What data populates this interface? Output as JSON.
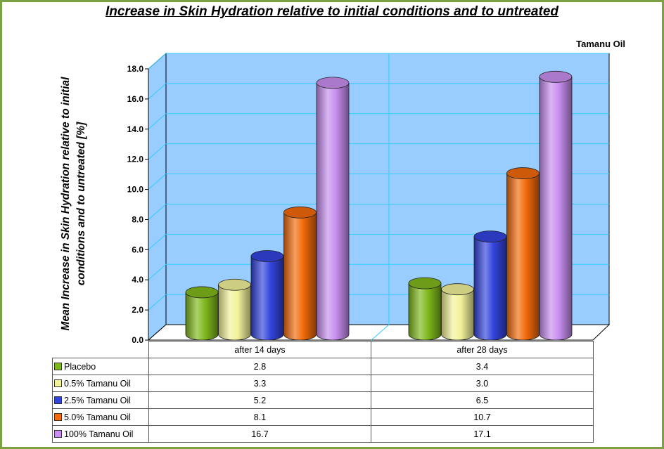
{
  "title": "Increase in Skin Hydration relative to initial conditions and to untreated",
  "subtitle": "Tamanu Oil",
  "chart_data": {
    "type": "bar",
    "title": "Increase in Skin Hydration relative to initial conditions and to untreated",
    "subtitle": "Tamanu Oil",
    "ylabel": "Mean Increase in Skin Hydration relative to initial conditions and to untreated [%]",
    "xlabel": "",
    "ylim": [
      0,
      18
    ],
    "yticks": [
      "0.0",
      "2.0",
      "4.0",
      "6.0",
      "8.0",
      "10.0",
      "12.0",
      "14.0",
      "16.0",
      "18.0"
    ],
    "categories": [
      "after 14 days",
      "after 28 days"
    ],
    "series": [
      {
        "name": "Placebo",
        "values": [
          2.8,
          3.4
        ],
        "color": "#7fb81c"
      },
      {
        "name": "0.5% Tamanu Oil",
        "values": [
          3.3,
          3.0
        ],
        "color": "#f2f29a"
      },
      {
        "name": "2.5%  Tamanu Oil",
        "values": [
          5.2,
          6.5
        ],
        "color": "#3344dd"
      },
      {
        "name": "5.0%  Tamanu Oil",
        "values": [
          8.1,
          10.7
        ],
        "color": "#f26a0a"
      },
      {
        "name": "100%  Tamanu Oil",
        "values": [
          16.7,
          17.1
        ],
        "color": "#c88ef0"
      }
    ],
    "table_values": [
      [
        "2.8",
        "3.4"
      ],
      [
        "3.3",
        "3.0"
      ],
      [
        "5.2",
        "6.5"
      ],
      [
        "8.1",
        "10.7"
      ],
      [
        "16.7",
        "17.1"
      ]
    ],
    "grid": true,
    "legend": "data-table"
  },
  "colors": {
    "frame": "#7ba142",
    "wall": "#99ccff",
    "gridline": "#33ccff"
  }
}
